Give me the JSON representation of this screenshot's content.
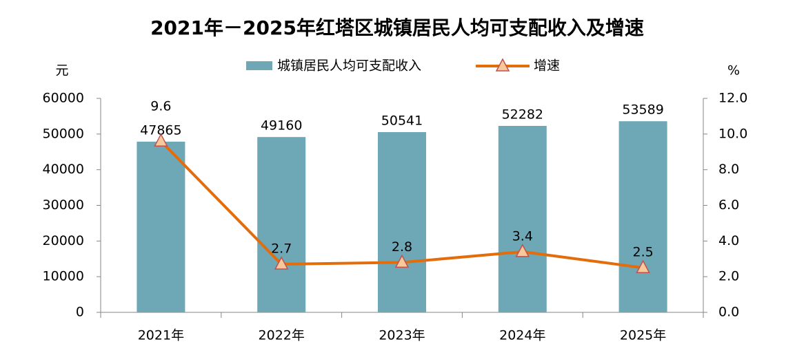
{
  "chart_data": {
    "type": "bar-line",
    "title": "2021年－2025年红塔区城镇居民人均可支配收入及增速",
    "y_label": "元",
    "y2_label": "%",
    "categories": [
      "2021年",
      "2022年",
      "2023年",
      "2024年",
      "2025年"
    ],
    "series": [
      {
        "name": "城镇居民人均可支配收入",
        "type": "bar",
        "color": "#6ea7b6",
        "values": [
          47865,
          49160,
          50541,
          52282,
          53589
        ]
      },
      {
        "name": "增速",
        "type": "line",
        "axis": "y2",
        "color": "#e46c0a",
        "marker_color": "#f6c89a",
        "values": [
          9.6,
          2.7,
          2.8,
          3.4,
          2.5
        ]
      }
    ],
    "ylim": [
      0,
      60000
    ],
    "yticks": [
      0,
      10000,
      20000,
      30000,
      40000,
      50000,
      60000
    ],
    "y2lim": [
      0,
      12
    ],
    "y2ticks": [
      {
        "value": 0,
        "label": "0.0"
      },
      {
        "value": 2,
        "label": "2.0"
      },
      {
        "value": 4,
        "label": "4.0"
      },
      {
        "value": 6,
        "label": "6.0"
      },
      {
        "value": 8,
        "label": "8.0"
      },
      {
        "value": 10,
        "label": "10.0"
      },
      {
        "value": 12,
        "label": "12.0"
      }
    ]
  }
}
